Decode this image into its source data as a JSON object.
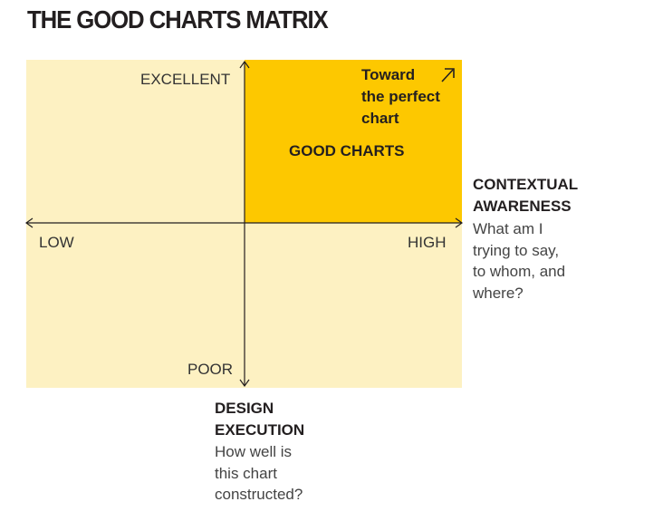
{
  "title": "THE GOOD CHARTS MATRIX",
  "axis_labels": {
    "excellent": "EXCELLENT",
    "poor": "POOR",
    "low": "LOW",
    "high": "HIGH"
  },
  "quadrant": {
    "label": "GOOD CHARTS",
    "toward_lines": [
      "Toward",
      "the perfect",
      "chart"
    ]
  },
  "x_axis": {
    "title_lines": [
      "CONTEXTUAL",
      "AWARENESS"
    ],
    "description_lines": [
      "What am I",
      "trying to say,",
      "to whom, and",
      "where?"
    ]
  },
  "y_axis": {
    "title_lines": [
      "DESIGN",
      "EXECUTION"
    ],
    "description_lines": [
      "How well is",
      "this chart",
      "constructed?"
    ]
  },
  "colors": {
    "matrix_bg": "#fdf1c2",
    "good_quadrant": "#fdc800",
    "text": "#231f20"
  }
}
